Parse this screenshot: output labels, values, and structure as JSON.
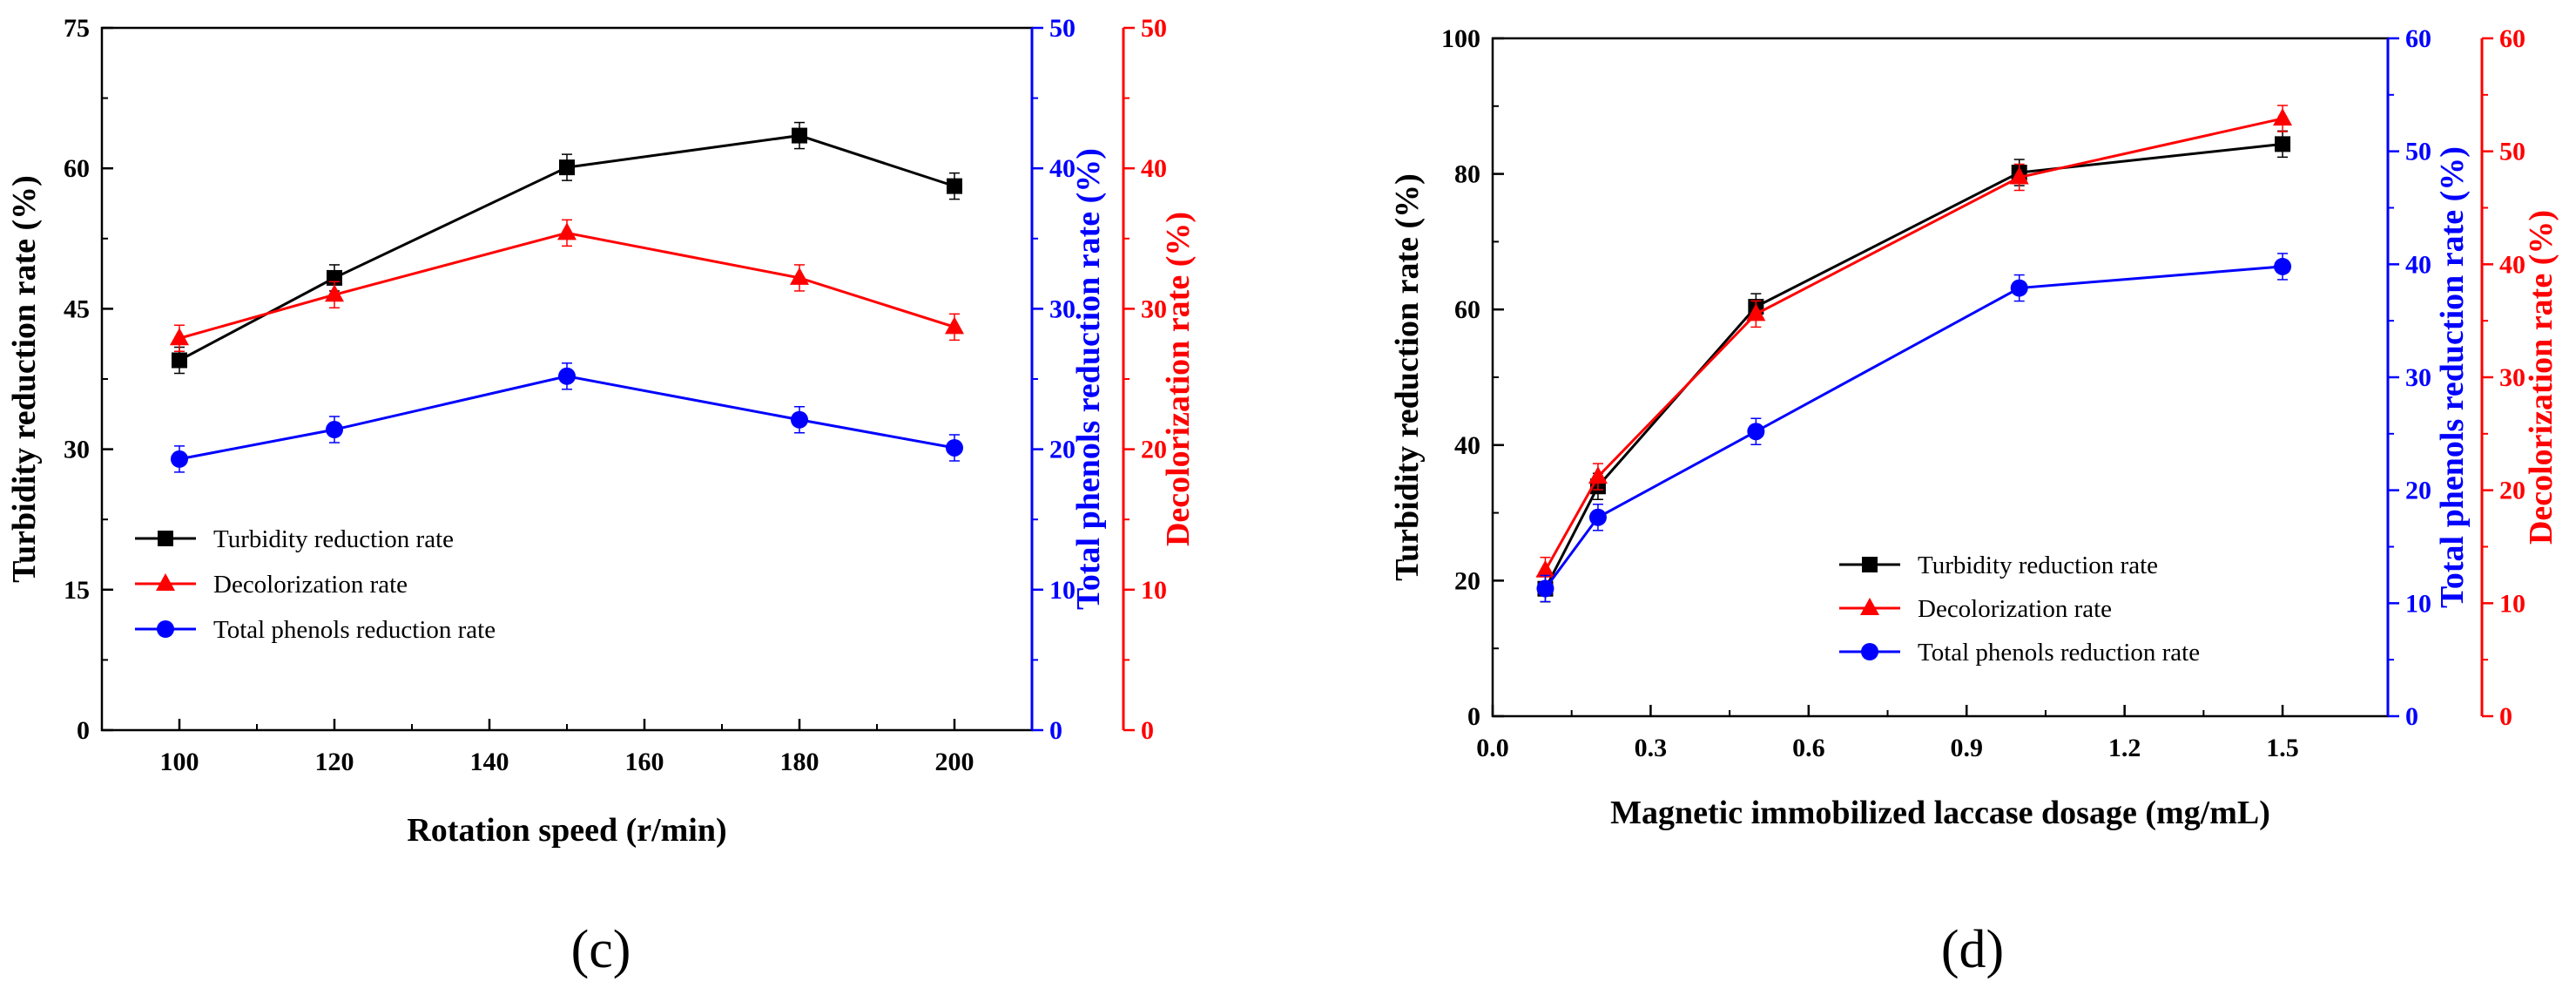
{
  "chart_data": [
    {
      "type": "line",
      "panel_label": "(c)",
      "xlabel": "Rotation speed (r/min)",
      "xlim": [
        90,
        210
      ],
      "xticks": [
        100,
        120,
        140,
        160,
        180,
        200
      ],
      "x": [
        100,
        120,
        150,
        180,
        200
      ],
      "axes": {
        "left": {
          "label": "Turbidity reduction rate (%)",
          "lim": [
            0,
            75
          ],
          "ticks": [
            0,
            15,
            30,
            45,
            60,
            75
          ],
          "color": "#000000"
        },
        "right1": {
          "label": "Total phenols reduction rate (%)",
          "lim": [
            0,
            50
          ],
          "ticks": [
            0,
            10,
            20,
            30,
            40,
            50
          ],
          "color": "#0000ff"
        },
        "right2": {
          "label": "Decolorization rate (%)",
          "lim": [
            0,
            50
          ],
          "ticks": [
            0,
            10,
            20,
            30,
            40,
            50
          ],
          "color": "#ff0000"
        }
      },
      "series": [
        {
          "name": "Turbidity reduction rate",
          "axis": "left",
          "marker": "square",
          "color": "#000000",
          "values": [
            39.5,
            48.3,
            60.1,
            63.5,
            58.1
          ]
        },
        {
          "name": "Decolorization rate",
          "axis": "right2",
          "marker": "triangle",
          "color": "#ff0000",
          "values": [
            27.9,
            31.0,
            35.4,
            32.2,
            28.7
          ]
        },
        {
          "name": "Total phenols reduction rate",
          "axis": "right1",
          "marker": "circle",
          "color": "#0000ff",
          "values": [
            19.3,
            21.4,
            25.2,
            22.1,
            20.1
          ]
        }
      ],
      "legend_position": "bottom-left"
    },
    {
      "type": "line",
      "panel_label": "(d)",
      "xlabel": "Magnetic immobilized laccase dosage (mg/mL)",
      "xlim": [
        0.0,
        1.7
      ],
      "xticks": [
        "0.0",
        "0.3",
        "0.6",
        "0.9",
        "1.2",
        "1.5"
      ],
      "x": [
        0.1,
        0.2,
        0.5,
        1.0,
        1.5
      ],
      "axes": {
        "left": {
          "label": "Turbidity reduction rate (%)",
          "lim": [
            0,
            100
          ],
          "ticks": [
            0,
            20,
            40,
            60,
            80,
            100
          ],
          "color": "#000000"
        },
        "right1": {
          "label": "Total phenols reduction rate (%)",
          "lim": [
            0,
            60
          ],
          "ticks": [
            0,
            10,
            20,
            30,
            40,
            50,
            60
          ],
          "color": "#0000ff"
        },
        "right2": {
          "label": "Decolorization rate (%)",
          "lim": [
            0,
            60
          ],
          "ticks": [
            0,
            10,
            20,
            30,
            40,
            50,
            60
          ],
          "color": "#ff0000"
        }
      },
      "series": [
        {
          "name": "Turbidity reduction rate",
          "axis": "left",
          "marker": "square",
          "color": "#000000",
          "values": [
            18.8,
            33.9,
            60.4,
            80.2,
            84.4
          ]
        },
        {
          "name": "Decolorization rate",
          "axis": "right2",
          "marker": "triangle",
          "color": "#ff0000",
          "values": [
            12.9,
            21.2,
            35.6,
            47.7,
            52.9
          ]
        },
        {
          "name": "Total phenols reduction rate",
          "axis": "right1",
          "marker": "circle",
          "color": "#0000ff",
          "values": [
            11.3,
            17.6,
            25.2,
            37.9,
            39.8
          ]
        }
      ],
      "legend_position": "bottom-right"
    }
  ]
}
